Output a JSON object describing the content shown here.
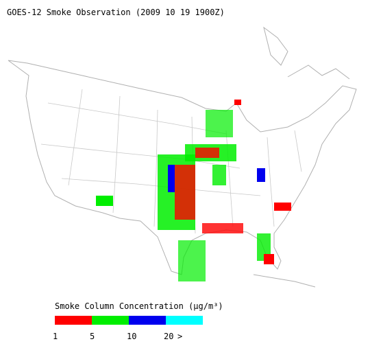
{
  "title": "GOES-12 Smoke Observation (2009 10 19  1900Z)",
  "legend": {
    "title": "Smoke Column Concentration (µg/m³)",
    "colors": [
      "#ff0000",
      "#00ee00",
      "#0000ee",
      "#00ffff"
    ],
    "labels": [
      "1",
      "5",
      "10",
      "20",
      ">"
    ]
  }
}
